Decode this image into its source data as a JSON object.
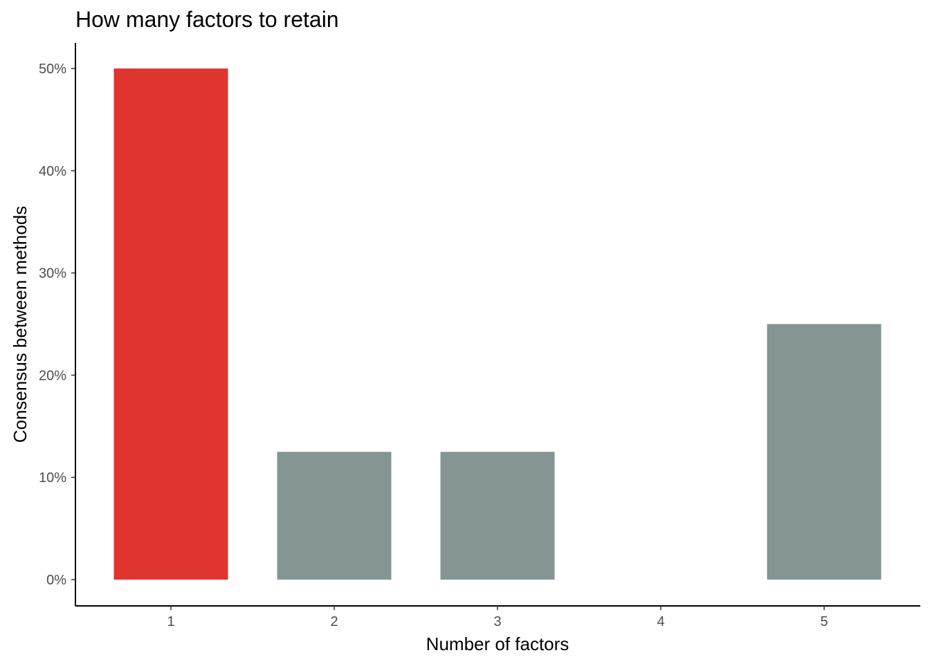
{
  "chart_data": {
    "type": "bar",
    "title": "How many factors to retain",
    "xlabel": "Number of factors",
    "ylabel": "Consensus between methods",
    "categories": [
      "1",
      "2",
      "3",
      "4",
      "5"
    ],
    "values": [
      0.5,
      0.125,
      0.125,
      0,
      0.25
    ],
    "ylim": [
      0,
      0.5
    ],
    "y_ticks": [
      0,
      0.1,
      0.2,
      0.3,
      0.4,
      0.5
    ],
    "y_tick_labels": [
      "0%",
      "10%",
      "20%",
      "30%",
      "40%",
      "50%"
    ],
    "grid": false,
    "legend": "none",
    "colors": {
      "highlight": "#E0352F",
      "default": "#849594",
      "axis": "#000000",
      "tick_text": "#4d4d4d"
    },
    "highlight_category": "1"
  }
}
